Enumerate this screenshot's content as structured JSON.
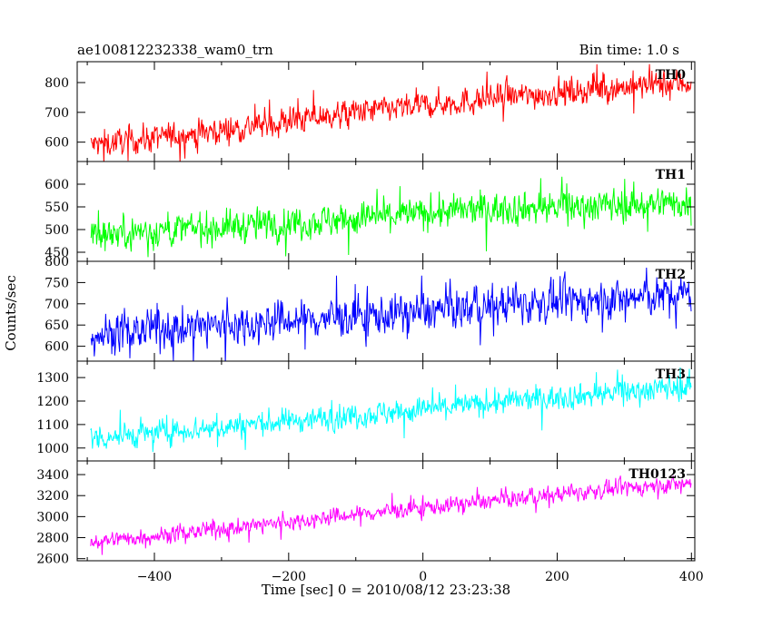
{
  "header": {
    "left": "ae100812232338_wam0_trn",
    "right": "Bin time: 1.0 s"
  },
  "chart_data": {
    "type": "line",
    "xlabel": "Time [sec] 0 = 2010/08/12 23:23:38",
    "ylabel": "Counts/sec",
    "xlim": [
      -515,
      405
    ],
    "x_ticks": [
      -400,
      -200,
      0,
      200,
      400
    ],
    "x_tick_labels": [
      "−400",
      "−200",
      "0",
      "200",
      "400"
    ],
    "x_range": [
      -495,
      400
    ],
    "bin_time": 1.0,
    "panels": [
      {
        "name": "TH0",
        "color": "#ff0000",
        "ylim": [
          535,
          870
        ],
        "y_ticks": [
          600,
          700,
          800
        ],
        "y_tick_labels": [
          "600",
          "700",
          "800"
        ],
        "trend": [
          [
            -495,
            590
          ],
          [
            -300,
            640
          ],
          [
            -100,
            700
          ],
          [
            100,
            745
          ],
          [
            300,
            785
          ],
          [
            400,
            800
          ]
        ],
        "noise": 28
      },
      {
        "name": "TH1",
        "color": "#00ff00",
        "ylim": [
          430,
          650
        ],
        "y_ticks": [
          450,
          500,
          550,
          600
        ],
        "y_tick_labels": [
          "450",
          "500",
          "550",
          "600"
        ],
        "trend": [
          [
            -495,
            490
          ],
          [
            -300,
            505
          ],
          [
            -100,
            525
          ],
          [
            100,
            545
          ],
          [
            300,
            555
          ],
          [
            400,
            560
          ]
        ],
        "noise": 22
      },
      {
        "name": "TH2",
        "color": "#0000ff",
        "ylim": [
          565,
          800
        ],
        "y_ticks": [
          600,
          650,
          700,
          750,
          800
        ],
        "y_tick_labels": [
          "600",
          "650",
          "700",
          "750",
          "800"
        ],
        "trend": [
          [
            -495,
            628
          ],
          [
            -300,
            650
          ],
          [
            -100,
            670
          ],
          [
            100,
            695
          ],
          [
            300,
            712
          ],
          [
            400,
            725
          ]
        ],
        "noise": 28
      },
      {
        "name": "TH3",
        "color": "#00ffff",
        "ylim": [
          945,
          1370
        ],
        "y_ticks": [
          1000,
          1100,
          1200,
          1300
        ],
        "y_tick_labels": [
          "1000",
          "1100",
          "1200",
          "1300"
        ],
        "trend": [
          [
            -495,
            1040
          ],
          [
            -300,
            1090
          ],
          [
            -100,
            1140
          ],
          [
            100,
            1190
          ],
          [
            300,
            1240
          ],
          [
            400,
            1265
          ]
        ],
        "noise": 32
      },
      {
        "name": "TH0123",
        "color": "#ff00ff",
        "ylim": [
          2580,
          3530
        ],
        "y_ticks": [
          2600,
          2800,
          3000,
          3200,
          3400
        ],
        "y_tick_labels": [
          "2600",
          "2800",
          "3000",
          "3200",
          "3400"
        ],
        "trend": [
          [
            -495,
            2760
          ],
          [
            -300,
            2880
          ],
          [
            -100,
            3020
          ],
          [
            100,
            3150
          ],
          [
            300,
            3270
          ],
          [
            400,
            3320
          ]
        ],
        "noise": 48
      }
    ]
  }
}
